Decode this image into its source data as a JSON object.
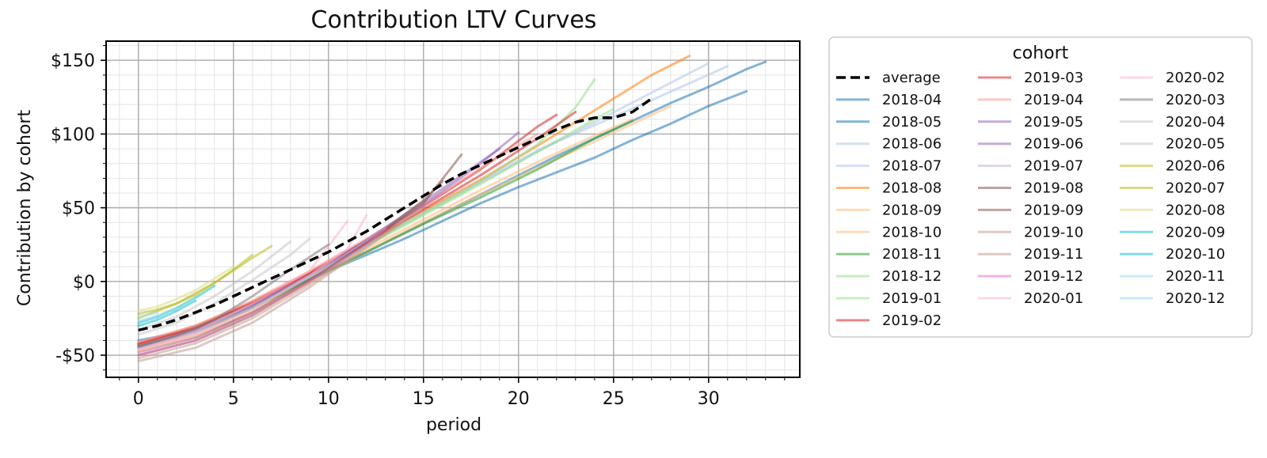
{
  "chart_data": {
    "type": "line",
    "title": "Contribution LTV Curves",
    "xlabel": "period",
    "ylabel": "Contribution by cohort",
    "xlim": [
      -1.7,
      34.8
    ],
    "ylim": [
      -65,
      163
    ],
    "xticks": [
      0,
      5,
      10,
      15,
      20,
      25,
      30
    ],
    "xtick_labels": [
      "0",
      "5",
      "10",
      "15",
      "20",
      "25",
      "30"
    ],
    "yticks": [
      -50,
      0,
      50,
      100,
      150
    ],
    "ytick_labels": [
      "-$50",
      "$0",
      "$50",
      "$100",
      "$150"
    ],
    "grid": true,
    "legend_title": "cohort",
    "legend_position": "outside-right",
    "series": [
      {
        "name": "average",
        "color": "#000000",
        "dashed": true,
        "x": [
          0,
          1,
          2,
          3,
          4,
          5,
          6,
          7,
          8,
          9,
          10,
          11,
          12,
          13,
          14,
          15,
          16,
          17,
          18,
          19,
          20,
          21,
          22,
          23,
          24,
          25,
          26,
          27
        ],
        "y": [
          -33,
          -30,
          -26,
          -21,
          -16,
          -10,
          -4,
          2,
          8,
          14,
          20,
          27,
          34,
          42,
          50,
          58,
          66,
          73,
          79,
          85,
          91,
          97,
          103,
          108,
          111,
          111,
          115,
          124
        ]
      },
      {
        "name": "2018-04",
        "color": "#1f77b4",
        "x": [
          0,
          2,
          4,
          6,
          8,
          10,
          12,
          14,
          16,
          18,
          20,
          22,
          24,
          26,
          28,
          30,
          32
        ],
        "y": [
          -40,
          -35,
          -26,
          -15,
          -4,
          7,
          18,
          29,
          41,
          53,
          64,
          74,
          84,
          96,
          107,
          119,
          129
        ]
      },
      {
        "name": "2018-05",
        "color": "#1f77b4",
        "x": [
          0,
          2,
          4,
          6,
          8,
          10,
          12,
          14,
          16,
          18,
          20,
          22,
          24,
          26,
          28,
          30,
          32,
          33
        ],
        "y": [
          -44,
          -37,
          -27,
          -16,
          -4,
          8,
          20,
          33,
          46,
          59,
          72,
          85,
          97,
          109,
          121,
          132,
          144,
          149
        ]
      },
      {
        "name": "2018-06",
        "color": "#aec7e8",
        "x": [
          0,
          3,
          6,
          9,
          12,
          15,
          18,
          21,
          24,
          27,
          30
        ],
        "y": [
          -45,
          -34,
          -16,
          4,
          25,
          46,
          67,
          88,
          108,
          128,
          148
        ]
      },
      {
        "name": "2018-07",
        "color": "#aec7e8",
        "x": [
          0,
          3,
          6,
          9,
          12,
          15,
          18,
          21,
          24,
          27,
          31
        ],
        "y": [
          -43,
          -32,
          -15,
          5,
          26,
          47,
          68,
          89,
          106,
          123,
          146
        ]
      },
      {
        "name": "2018-08",
        "color": "#ff7f0e",
        "x": [
          0,
          3,
          6,
          9,
          12,
          15,
          18,
          21,
          24,
          27,
          29
        ],
        "y": [
          -42,
          -30,
          -14,
          6,
          27,
          48,
          69,
          92,
          116,
          140,
          153
        ]
      },
      {
        "name": "2018-09",
        "color": "#ffbb78",
        "x": [
          0,
          3,
          6,
          9,
          12,
          15,
          18,
          21,
          24,
          26
        ],
        "y": [
          -46,
          -36,
          -19,
          1,
          22,
          42,
          62,
          81,
          99,
          110
        ]
      },
      {
        "name": "2018-10",
        "color": "#ffbb78",
        "x": [
          0,
          3,
          6,
          9,
          12,
          15,
          18,
          21,
          24,
          28
        ],
        "y": [
          -47,
          -37,
          -21,
          -1,
          20,
          40,
          59,
          77,
          95,
          119
        ]
      },
      {
        "name": "2018-11",
        "color": "#2ca02c",
        "x": [
          0,
          3,
          6,
          9,
          12,
          15,
          18,
          21,
          24,
          26
        ],
        "y": [
          -44,
          -34,
          -18,
          1,
          20,
          39,
          57,
          76,
          97,
          109
        ]
      },
      {
        "name": "2018-12",
        "color": "#98df8a",
        "x": [
          0,
          3,
          6,
          9,
          12,
          15,
          18,
          21,
          24,
          25
        ],
        "y": [
          -45,
          -34,
          -17,
          3,
          24,
          45,
          66,
          88,
          110,
          117
        ]
      },
      {
        "name": "2019-01",
        "color": "#98df8a",
        "x": [
          0,
          3,
          6,
          9,
          12,
          15,
          18,
          21,
          23,
          24
        ],
        "y": [
          -44,
          -33,
          -16,
          4,
          25,
          46,
          68,
          93,
          118,
          137
        ]
      },
      {
        "name": "2019-02",
        "color": "#d62728",
        "x": [
          0,
          3,
          6,
          9,
          12,
          15,
          18,
          21,
          23
        ],
        "y": [
          -43,
          -32,
          -15,
          5,
          26,
          49,
          72,
          97,
          115
        ]
      },
      {
        "name": "2019-03",
        "color": "#d62728",
        "x": [
          0,
          3,
          6,
          9,
          12,
          15,
          18,
          21,
          22
        ],
        "y": [
          -42,
          -31,
          -14,
          6,
          28,
          51,
          76,
          105,
          113
        ]
      },
      {
        "name": "2019-04",
        "color": "#ff9896",
        "x": [
          0,
          3,
          6,
          9,
          12,
          15,
          18,
          21
        ],
        "y": [
          -41,
          -30,
          -13,
          7,
          29,
          52,
          77,
          100
        ]
      },
      {
        "name": "2019-05",
        "color": "#9467bd",
        "x": [
          0,
          3,
          6,
          9,
          12,
          15,
          18,
          20
        ],
        "y": [
          -44,
          -33,
          -16,
          4,
          27,
          52,
          80,
          101
        ]
      },
      {
        "name": "2019-06",
        "color": "#9467bd",
        "x": [
          0,
          3,
          6,
          9,
          12,
          15,
          18,
          19
        ],
        "y": [
          -45,
          -34,
          -17,
          4,
          28,
          54,
          81,
          90
        ]
      },
      {
        "name": "2019-07",
        "color": "#c5b0d5",
        "x": [
          0,
          3,
          6,
          9,
          12,
          15,
          18
        ],
        "y": [
          -46,
          -35,
          -18,
          3,
          27,
          53,
          80
        ]
      },
      {
        "name": "2019-08",
        "color": "#8c564b",
        "x": [
          0,
          3,
          6,
          9,
          12,
          15,
          17
        ],
        "y": [
          -48,
          -38,
          -21,
          1,
          26,
          53,
          86
        ]
      },
      {
        "name": "2019-09",
        "color": "#8c564b",
        "x": [
          0,
          3,
          6,
          9,
          12,
          15,
          16
        ],
        "y": [
          -50,
          -40,
          -23,
          0,
          26,
          55,
          68
        ]
      },
      {
        "name": "2019-10",
        "color": "#c49c94",
        "x": [
          0,
          3,
          6,
          9,
          12,
          15
        ],
        "y": [
          -52,
          -42,
          -25,
          -2,
          24,
          50
        ]
      },
      {
        "name": "2019-11",
        "color": "#c49c94",
        "x": [
          0,
          3,
          6,
          9,
          12,
          14
        ],
        "y": [
          -54,
          -45,
          -28,
          -4,
          23,
          41
        ]
      },
      {
        "name": "2019-12",
        "color": "#e377c2",
        "x": [
          0,
          3,
          6,
          9,
          12,
          13
        ],
        "y": [
          -50,
          -40,
          -22,
          0,
          25,
          36
        ]
      },
      {
        "name": "2020-01",
        "color": "#f7b6d2",
        "x": [
          0,
          3,
          6,
          9,
          11,
          12
        ],
        "y": [
          -48,
          -37,
          -19,
          4,
          22,
          45
        ]
      },
      {
        "name": "2020-02",
        "color": "#f7b6d2",
        "x": [
          0,
          3,
          6,
          9,
          11
        ],
        "y": [
          -46,
          -34,
          -15,
          7,
          41
        ]
      },
      {
        "name": "2020-03",
        "color": "#7f7f7f",
        "x": [
          0,
          2,
          4,
          6,
          8,
          10
        ],
        "y": [
          -44,
          -37,
          -26,
          -10,
          8,
          25
        ]
      },
      {
        "name": "2020-04",
        "color": "#c7c7c7",
        "x": [
          0,
          2,
          4,
          6,
          8,
          9
        ],
        "y": [
          -36,
          -28,
          -15,
          1,
          18,
          29
        ]
      },
      {
        "name": "2020-05",
        "color": "#c7c7c7",
        "x": [
          0,
          2,
          4,
          6,
          8
        ],
        "y": [
          -33,
          -24,
          -10,
          7,
          27
        ]
      },
      {
        "name": "2020-06",
        "color": "#bcbd22",
        "x": [
          0,
          2,
          4,
          6,
          7
        ],
        "y": [
          -25,
          -15,
          -1,
          16,
          24
        ]
      },
      {
        "name": "2020-07",
        "color": "#bcbd22",
        "x": [
          0,
          1,
          2,
          3,
          4,
          5,
          6
        ],
        "y": [
          -22,
          -19,
          -15,
          -9,
          -1,
          8,
          18
        ]
      },
      {
        "name": "2020-08",
        "color": "#dbdb8d",
        "x": [
          0,
          1,
          2,
          3,
          4,
          5
        ],
        "y": [
          -20,
          -17,
          -12,
          -6,
          2,
          10
        ]
      },
      {
        "name": "2020-09",
        "color": "#17becf",
        "x": [
          0,
          1,
          2,
          3,
          4
        ],
        "y": [
          -28,
          -24,
          -18,
          -11,
          -3
        ]
      },
      {
        "name": "2020-10",
        "color": "#17becf",
        "x": [
          0,
          1,
          2,
          3
        ],
        "y": [
          -30,
          -26,
          -20,
          -13
        ]
      },
      {
        "name": "2020-11",
        "color": "#9edae5",
        "x": [
          0,
          1,
          2
        ],
        "y": [
          -27,
          -23,
          -18
        ]
      },
      {
        "name": "2020-12",
        "color": "#9edae5",
        "x": [
          0,
          1
        ],
        "y": [
          -24,
          -21
        ]
      }
    ]
  }
}
